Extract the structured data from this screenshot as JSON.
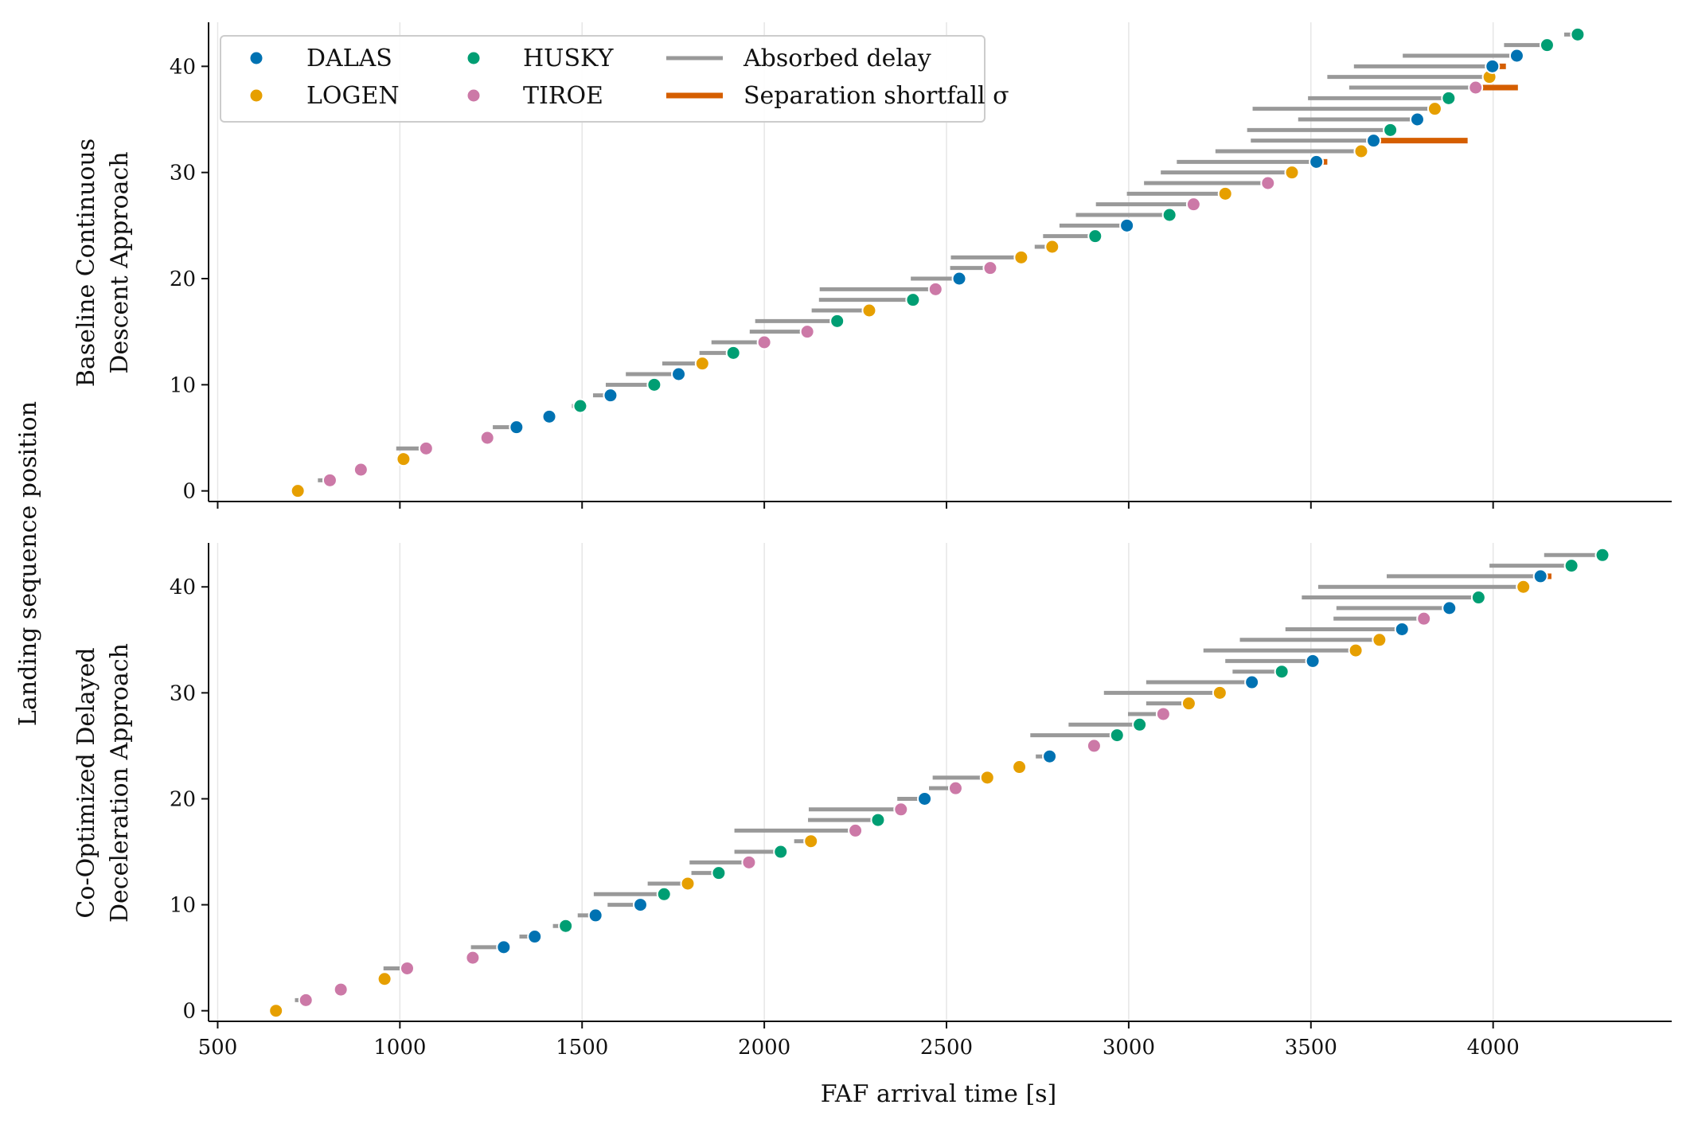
{
  "figure": {
    "shared_ylabel": "Landing sequence position",
    "shared_xlabel": "FAF arrival time [s]"
  },
  "legend": {
    "entries": [
      {
        "label": "DALAS",
        "kind": "dot",
        "color": "#0072b2"
      },
      {
        "label": "LOGEN",
        "kind": "dot",
        "color": "#e69f00"
      },
      {
        "label": "HUSKY",
        "kind": "dot",
        "color": "#009e73"
      },
      {
        "label": "TIROE",
        "kind": "dot",
        "color": "#cc79a7"
      },
      {
        "label": "Absorbed delay",
        "kind": "line",
        "color": "#999999"
      },
      {
        "label": "Separation shortfall σ",
        "kind": "line",
        "color": "#d55e00"
      }
    ]
  },
  "colors": {
    "DALAS": "#0072b2",
    "LOGEN": "#e69f00",
    "HUSKY": "#009e73",
    "TIROE": "#cc79a7",
    "delay": "#999999",
    "shortfall": "#d55e00",
    "grid": "#e6e6e6"
  },
  "chart_data": [
    {
      "type": "scatter",
      "title": "",
      "ylabel_lines": [
        "Baseline Continuous",
        "Descent Approach"
      ],
      "xlabel": "",
      "xlim": [
        475,
        4490
      ],
      "ylim": [
        -1,
        44
      ],
      "xticks": [
        500,
        1000,
        1500,
        2000,
        2500,
        3000,
        3500,
        4000
      ],
      "yticks": [
        0,
        10,
        20,
        30,
        40
      ],
      "grid": "x",
      "legend_location": "upper-left",
      "points": [
        {
          "pos": 0,
          "fix": "LOGEN",
          "t": 720,
          "delay_start": 720,
          "shortfall_end": null
        },
        {
          "pos": 1,
          "fix": "TIROE",
          "t": 808,
          "delay_start": 775,
          "shortfall_end": null
        },
        {
          "pos": 2,
          "fix": "TIROE",
          "t": 893,
          "delay_start": 893,
          "shortfall_end": null
        },
        {
          "pos": 3,
          "fix": "LOGEN",
          "t": 1010,
          "delay_start": 990,
          "shortfall_end": null
        },
        {
          "pos": 4,
          "fix": "TIROE",
          "t": 1072,
          "delay_start": 990,
          "shortfall_end": null
        },
        {
          "pos": 5,
          "fix": "TIROE",
          "t": 1240,
          "delay_start": 1240,
          "shortfall_end": null
        },
        {
          "pos": 6,
          "fix": "DALAS",
          "t": 1320,
          "delay_start": 1255,
          "shortfall_end": null
        },
        {
          "pos": 7,
          "fix": "DALAS",
          "t": 1410,
          "delay_start": 1410,
          "shortfall_end": null
        },
        {
          "pos": 8,
          "fix": "HUSKY",
          "t": 1495,
          "delay_start": 1472,
          "shortfall_end": null
        },
        {
          "pos": 9,
          "fix": "DALAS",
          "t": 1578,
          "delay_start": 1530,
          "shortfall_end": null
        },
        {
          "pos": 10,
          "fix": "HUSKY",
          "t": 1698,
          "delay_start": 1565,
          "shortfall_end": null
        },
        {
          "pos": 11,
          "fix": "DALAS",
          "t": 1765,
          "delay_start": 1620,
          "shortfall_end": null
        },
        {
          "pos": 12,
          "fix": "LOGEN",
          "t": 1830,
          "delay_start": 1720,
          "shortfall_end": null
        },
        {
          "pos": 13,
          "fix": "HUSKY",
          "t": 1915,
          "delay_start": 1822,
          "shortfall_end": null
        },
        {
          "pos": 14,
          "fix": "TIROE",
          "t": 2000,
          "delay_start": 1855,
          "shortfall_end": null
        },
        {
          "pos": 15,
          "fix": "TIROE",
          "t": 2118,
          "delay_start": 1960,
          "shortfall_end": null
        },
        {
          "pos": 16,
          "fix": "HUSKY",
          "t": 2200,
          "delay_start": 1975,
          "shortfall_end": null
        },
        {
          "pos": 17,
          "fix": "LOGEN",
          "t": 2288,
          "delay_start": 2130,
          "shortfall_end": null
        },
        {
          "pos": 18,
          "fix": "HUSKY",
          "t": 2408,
          "delay_start": 2150,
          "shortfall_end": null
        },
        {
          "pos": 19,
          "fix": "TIROE",
          "t": 2470,
          "delay_start": 2152,
          "shortfall_end": null
        },
        {
          "pos": 20,
          "fix": "DALAS",
          "t": 2535,
          "delay_start": 2402,
          "shortfall_end": null
        },
        {
          "pos": 21,
          "fix": "TIROE",
          "t": 2620,
          "delay_start": 2510,
          "shortfall_end": null
        },
        {
          "pos": 22,
          "fix": "LOGEN",
          "t": 2705,
          "delay_start": 2512,
          "shortfall_end": null
        },
        {
          "pos": 23,
          "fix": "LOGEN",
          "t": 2790,
          "delay_start": 2742,
          "shortfall_end": null
        },
        {
          "pos": 24,
          "fix": "HUSKY",
          "t": 2908,
          "delay_start": 2765,
          "shortfall_end": null
        },
        {
          "pos": 25,
          "fix": "DALAS",
          "t": 2995,
          "delay_start": 2810,
          "shortfall_end": null
        },
        {
          "pos": 26,
          "fix": "HUSKY",
          "t": 3112,
          "delay_start": 2855,
          "shortfall_end": null
        },
        {
          "pos": 27,
          "fix": "TIROE",
          "t": 3178,
          "delay_start": 2910,
          "shortfall_end": null
        },
        {
          "pos": 28,
          "fix": "LOGEN",
          "t": 3265,
          "delay_start": 2995,
          "shortfall_end": null
        },
        {
          "pos": 29,
          "fix": "TIROE",
          "t": 3382,
          "delay_start": 3042,
          "shortfall_end": null
        },
        {
          "pos": 30,
          "fix": "LOGEN",
          "t": 3448,
          "delay_start": 3088,
          "shortfall_end": null
        },
        {
          "pos": 31,
          "fix": "DALAS",
          "t": 3515,
          "delay_start": 3132,
          "shortfall_end": 3545
        },
        {
          "pos": 32,
          "fix": "LOGEN",
          "t": 3638,
          "delay_start": 3238,
          "shortfall_end": null
        },
        {
          "pos": 33,
          "fix": "DALAS",
          "t": 3672,
          "delay_start": 3335,
          "shortfall_end": 3930
        },
        {
          "pos": 34,
          "fix": "HUSKY",
          "t": 3718,
          "delay_start": 3325,
          "shortfall_end": null
        },
        {
          "pos": 35,
          "fix": "DALAS",
          "t": 3792,
          "delay_start": 3465,
          "shortfall_end": null
        },
        {
          "pos": 36,
          "fix": "LOGEN",
          "t": 3840,
          "delay_start": 3340,
          "shortfall_end": null
        },
        {
          "pos": 37,
          "fix": "HUSKY",
          "t": 3878,
          "delay_start": 3492,
          "shortfall_end": null
        },
        {
          "pos": 38,
          "fix": "TIROE",
          "t": 3952,
          "delay_start": 3605,
          "shortfall_end": 4068
        },
        {
          "pos": 39,
          "fix": "LOGEN",
          "t": 3990,
          "delay_start": 3545,
          "shortfall_end": null
        },
        {
          "pos": 40,
          "fix": "DALAS",
          "t": 3998,
          "delay_start": 3618,
          "shortfall_end": 4035
        },
        {
          "pos": 41,
          "fix": "DALAS",
          "t": 4065,
          "delay_start": 3752,
          "shortfall_end": null
        },
        {
          "pos": 42,
          "fix": "HUSKY",
          "t": 4148,
          "delay_start": 4030,
          "shortfall_end": null
        },
        {
          "pos": 43,
          "fix": "HUSKY",
          "t": 4232,
          "delay_start": 4195,
          "shortfall_end": null
        }
      ]
    },
    {
      "type": "scatter",
      "title": "",
      "ylabel_lines": [
        "Co-Optimized Delayed",
        "Deceleration Approach"
      ],
      "xlabel": "FAF arrival time [s]",
      "xlim": [
        475,
        4490
      ],
      "ylim": [
        -1,
        44
      ],
      "xticks": [
        500,
        1000,
        1500,
        2000,
        2500,
        3000,
        3500,
        4000
      ],
      "yticks": [
        0,
        10,
        20,
        30,
        40
      ],
      "grid": "x",
      "legend_location": "none",
      "points": [
        {
          "pos": 0,
          "fix": "LOGEN",
          "t": 660,
          "delay_start": 660,
          "shortfall_end": null
        },
        {
          "pos": 1,
          "fix": "TIROE",
          "t": 742,
          "delay_start": 712,
          "shortfall_end": null
        },
        {
          "pos": 2,
          "fix": "TIROE",
          "t": 838,
          "delay_start": 820,
          "shortfall_end": null
        },
        {
          "pos": 3,
          "fix": "LOGEN",
          "t": 958,
          "delay_start": 958,
          "shortfall_end": null
        },
        {
          "pos": 4,
          "fix": "TIROE",
          "t": 1020,
          "delay_start": 955,
          "shortfall_end": null
        },
        {
          "pos": 5,
          "fix": "TIROE",
          "t": 1200,
          "delay_start": 1190,
          "shortfall_end": null
        },
        {
          "pos": 6,
          "fix": "DALAS",
          "t": 1285,
          "delay_start": 1195,
          "shortfall_end": null
        },
        {
          "pos": 7,
          "fix": "DALAS",
          "t": 1370,
          "delay_start": 1328,
          "shortfall_end": null
        },
        {
          "pos": 8,
          "fix": "HUSKY",
          "t": 1455,
          "delay_start": 1420,
          "shortfall_end": null
        },
        {
          "pos": 9,
          "fix": "DALAS",
          "t": 1537,
          "delay_start": 1488,
          "shortfall_end": null
        },
        {
          "pos": 10,
          "fix": "DALAS",
          "t": 1660,
          "delay_start": 1570,
          "shortfall_end": null
        },
        {
          "pos": 11,
          "fix": "HUSKY",
          "t": 1725,
          "delay_start": 1532,
          "shortfall_end": null
        },
        {
          "pos": 12,
          "fix": "LOGEN",
          "t": 1790,
          "delay_start": 1680,
          "shortfall_end": null
        },
        {
          "pos": 13,
          "fix": "HUSKY",
          "t": 1875,
          "delay_start": 1800,
          "shortfall_end": null
        },
        {
          "pos": 14,
          "fix": "TIROE",
          "t": 1958,
          "delay_start": 1795,
          "shortfall_end": null
        },
        {
          "pos": 15,
          "fix": "HUSKY",
          "t": 2045,
          "delay_start": 1918,
          "shortfall_end": null
        },
        {
          "pos": 16,
          "fix": "LOGEN",
          "t": 2128,
          "delay_start": 2082,
          "shortfall_end": null
        },
        {
          "pos": 17,
          "fix": "TIROE",
          "t": 2250,
          "delay_start": 1918,
          "shortfall_end": null
        },
        {
          "pos": 18,
          "fix": "HUSKY",
          "t": 2312,
          "delay_start": 2120,
          "shortfall_end": null
        },
        {
          "pos": 19,
          "fix": "TIROE",
          "t": 2375,
          "delay_start": 2122,
          "shortfall_end": null
        },
        {
          "pos": 20,
          "fix": "DALAS",
          "t": 2440,
          "delay_start": 2365,
          "shortfall_end": null
        },
        {
          "pos": 21,
          "fix": "TIROE",
          "t": 2525,
          "delay_start": 2452,
          "shortfall_end": null
        },
        {
          "pos": 22,
          "fix": "LOGEN",
          "t": 2612,
          "delay_start": 2462,
          "shortfall_end": null
        },
        {
          "pos": 23,
          "fix": "LOGEN",
          "t": 2700,
          "delay_start": 2700,
          "shortfall_end": null
        },
        {
          "pos": 24,
          "fix": "DALAS",
          "t": 2783,
          "delay_start": 2745,
          "shortfall_end": null
        },
        {
          "pos": 25,
          "fix": "TIROE",
          "t": 2905,
          "delay_start": 2888,
          "shortfall_end": null
        },
        {
          "pos": 26,
          "fix": "HUSKY",
          "t": 2968,
          "delay_start": 2730,
          "shortfall_end": null
        },
        {
          "pos": 27,
          "fix": "HUSKY",
          "t": 3030,
          "delay_start": 2835,
          "shortfall_end": null
        },
        {
          "pos": 28,
          "fix": "TIROE",
          "t": 3095,
          "delay_start": 2998,
          "shortfall_end": null
        },
        {
          "pos": 29,
          "fix": "LOGEN",
          "t": 3165,
          "delay_start": 3048,
          "shortfall_end": null
        },
        {
          "pos": 30,
          "fix": "LOGEN",
          "t": 3250,
          "delay_start": 2932,
          "shortfall_end": null
        },
        {
          "pos": 31,
          "fix": "DALAS",
          "t": 3338,
          "delay_start": 3048,
          "shortfall_end": null
        },
        {
          "pos": 32,
          "fix": "HUSKY",
          "t": 3420,
          "delay_start": 3285,
          "shortfall_end": null
        },
        {
          "pos": 33,
          "fix": "DALAS",
          "t": 3505,
          "delay_start": 3265,
          "shortfall_end": null
        },
        {
          "pos": 34,
          "fix": "LOGEN",
          "t": 3623,
          "delay_start": 3205,
          "shortfall_end": null
        },
        {
          "pos": 35,
          "fix": "LOGEN",
          "t": 3688,
          "delay_start": 3305,
          "shortfall_end": null
        },
        {
          "pos": 36,
          "fix": "DALAS",
          "t": 3750,
          "delay_start": 3430,
          "shortfall_end": null
        },
        {
          "pos": 37,
          "fix": "TIROE",
          "t": 3810,
          "delay_start": 3562,
          "shortfall_end": null
        },
        {
          "pos": 38,
          "fix": "DALAS",
          "t": 3880,
          "delay_start": 3570,
          "shortfall_end": null
        },
        {
          "pos": 39,
          "fix": "HUSKY",
          "t": 3960,
          "delay_start": 3475,
          "shortfall_end": null
        },
        {
          "pos": 40,
          "fix": "LOGEN",
          "t": 4083,
          "delay_start": 3520,
          "shortfall_end": null
        },
        {
          "pos": 41,
          "fix": "DALAS",
          "t": 4130,
          "delay_start": 3708,
          "shortfall_end": 4160
        },
        {
          "pos": 42,
          "fix": "HUSKY",
          "t": 4215,
          "delay_start": 3990,
          "shortfall_end": null
        },
        {
          "pos": 43,
          "fix": "HUSKY",
          "t": 4300,
          "delay_start": 4140,
          "shortfall_end": null
        }
      ]
    }
  ]
}
